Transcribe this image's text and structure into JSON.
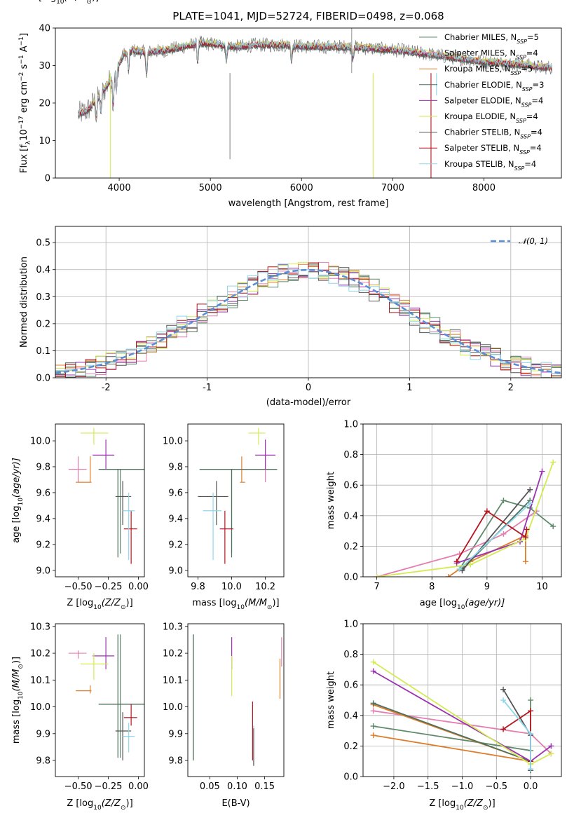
{
  "colors": {
    "Chabrier MILES": "#5f8a6b",
    "Salpeter MILES": "#e37fb0",
    "Kroupa MILES": "#dd7e2c",
    "Chabrier ELODIE": "#4d6f5c",
    "Salpeter ELODIE": "#9a33b0",
    "Kroupa ELODIE": "#d4ea52",
    "Chabrier STELIB": "#555555",
    "Salpeter STELIB": "#b4151e",
    "Kroupa STELIB": "#8fd7ea",
    "normal": "#5a8fd6"
  },
  "chart_data": [
    {
      "id": "spectrum",
      "type": "line",
      "title": "PLATE=1041, MJD=52724, FIBERID=0498, z=0.068",
      "xlabel": "wavelength [Angstrom, rest frame]",
      "ylabel": "Flux [f",
      "ylabel_sub": "λ",
      "ylabel_rest": "10",
      "ylabel_exp": "−17",
      "ylabel_units": " erg cm",
      "ylabel_exp2": "−2",
      "ylabel_s": " s",
      "ylabel_exp3": "−1",
      "ylabel_A": " A",
      "ylabel_exp4": "−1",
      "ylabel_end": "]",
      "xlim": [
        3300,
        8850
      ],
      "ylim": [
        0,
        40
      ],
      "xticks": [
        4000,
        5000,
        6000,
        7000,
        8000
      ],
      "yticks": [
        0,
        10,
        20,
        30,
        40
      ],
      "continuum": {
        "x": [
          3550,
          3650,
          3750,
          3850,
          3950,
          4050,
          4150,
          4300,
          4500,
          4700,
          4900,
          5100,
          5300,
          5500,
          5800,
          6100,
          6500,
          6800,
          7100,
          7400,
          7700,
          8000,
          8300,
          8500,
          8650,
          8750
        ],
        "y": [
          17,
          18,
          21,
          24,
          28,
          33,
          34,
          33.5,
          34,
          35,
          36,
          35.5,
          35,
          35.5,
          35.5,
          35,
          35,
          34.5,
          34,
          33,
          32,
          31,
          30.5,
          30,
          29.5,
          29.5
        ]
      },
      "series": [
        {
          "name": "Chabrier MILES",
          "nssp": "5"
        },
        {
          "name": "Salpeter MILES",
          "nssp": "4"
        },
        {
          "name": "Kroupa MILES",
          "nssp": "5"
        },
        {
          "name": "Chabrier ELODIE",
          "nssp": "3"
        },
        {
          "name": "Salpeter ELODIE",
          "nssp": "4"
        },
        {
          "name": "Kroupa ELODIE",
          "nssp": "4"
        },
        {
          "name": "Chabrier STELIB",
          "nssp": "4"
        },
        {
          "name": "Salpeter STELIB",
          "nssp": "4"
        },
        {
          "name": "Kroupa STELIB",
          "nssp": "4"
        }
      ],
      "legend_position": "upper-right"
    },
    {
      "id": "residuals",
      "type": "line",
      "xlabel": "(data-model)/error",
      "ylabel": "Normed distribution",
      "xlim": [
        -2.5,
        2.5
      ],
      "ylim": [
        0,
        0.56
      ],
      "xticks": [
        -2,
        -1,
        0,
        1,
        2
      ],
      "yticks": [
        0.0,
        0.1,
        0.2,
        0.3,
        0.4,
        0.5
      ],
      "grid": true,
      "legend": "𝒩(0, 1)",
      "legend_position": "upper-right"
    },
    {
      "id": "age-vs-Z",
      "type": "scatter",
      "xlabel": "Z [log",
      "xlabel_sub": "10",
      "xlabel_rest": "(Z/Z",
      "xlabel_sun": "⊙",
      "xlabel_end": ")]",
      "ylabel": "age  [log",
      "ylabel_sub": "10",
      "ylabel_rest": "(age/yr)]",
      "xlim": [
        -0.69,
        0.05
      ],
      "ylim": [
        8.95,
        10.13
      ],
      "xticks": [
        -0.5,
        -0.25,
        0.0
      ],
      "xticklabels": [
        "−0.50",
        "−0.25",
        "0.00"
      ],
      "yticks": [
        9.0,
        9.2,
        9.4,
        9.6,
        9.8,
        10.0
      ],
      "points": [
        {
          "s": "Chabrier MILES",
          "x": -0.15,
          "y": 9.78,
          "xl": -0.33,
          "xh": 0.05,
          "yl": 9.13,
          "yh": 9.78
        },
        {
          "s": "Salpeter MILES",
          "x": -0.5,
          "y": 9.78,
          "xl": -0.58,
          "xh": -0.43,
          "yl": 9.68,
          "yh": 9.88
        },
        {
          "s": "Kroupa MILES",
          "x": -0.4,
          "y": 9.68,
          "xl": -0.52,
          "xh": -0.39,
          "yl": 9.68,
          "yh": 9.88
        },
        {
          "s": "Chabrier ELODIE",
          "x": -0.17,
          "y": 9.78,
          "xl": -0.33,
          "xh": 0.05,
          "yl": 9.1,
          "yh": 9.78
        },
        {
          "s": "Salpeter ELODIE",
          "x": -0.27,
          "y": 9.89,
          "xl": -0.38,
          "xh": -0.2,
          "yl": 9.78,
          "yh": 10.01
        },
        {
          "s": "Kroupa ELODIE",
          "x": -0.37,
          "y": 10.06,
          "xl": -0.48,
          "xh": -0.25,
          "yl": 9.97,
          "yh": 10.1
        },
        {
          "s": "Chabrier STELIB",
          "x": -0.13,
          "y": 9.57,
          "xl": -0.19,
          "xh": -0.06,
          "yl": 9.35,
          "yh": 9.69
        },
        {
          "s": "Salpeter STELIB",
          "x": -0.06,
          "y": 9.32,
          "xl": -0.12,
          "xh": -0.01,
          "yl": 9.05,
          "yh": 9.46
        },
        {
          "s": "Kroupa STELIB",
          "x": -0.08,
          "y": 9.46,
          "xl": -0.13,
          "xh": -0.03,
          "yl": 9.08,
          "yh": 9.6
        }
      ]
    },
    {
      "id": "age-vs-mass",
      "type": "scatter",
      "xlabel": "mass [log",
      "xlabel_sub": "10",
      "xlabel_rest": "(M/M",
      "xlabel_sun": "⊙",
      "xlabel_end": ")]",
      "xlim": [
        9.74,
        10.31
      ],
      "ylim": [
        8.95,
        10.13
      ],
      "xticks": [
        9.8,
        10.0,
        10.2
      ],
      "xticklabels": [
        "9.8",
        "10.0",
        "10.2"
      ],
      "yticks": [
        9.0,
        9.2,
        9.4,
        9.6,
        9.8,
        10.0
      ],
      "points": [
        {
          "s": "Chabrier MILES",
          "x": 10.0,
          "y": 9.78,
          "xl": 9.81,
          "xh": 10.27,
          "yl": 9.13,
          "yh": 9.78
        },
        {
          "s": "Salpeter MILES",
          "x": 10.2,
          "y": 9.78,
          "xl": 10.18,
          "xh": 10.21,
          "yl": 9.68,
          "yh": 9.88
        },
        {
          "s": "Kroupa MILES",
          "x": 10.06,
          "y": 9.68,
          "xl": 10.05,
          "xh": 10.08,
          "yl": 9.68,
          "yh": 9.88
        },
        {
          "s": "Chabrier ELODIE",
          "x": 10.0,
          "y": 9.78,
          "xl": 9.81,
          "xh": 10.27,
          "yl": 9.1,
          "yh": 9.78
        },
        {
          "s": "Salpeter ELODIE",
          "x": 10.2,
          "y": 9.89,
          "xl": 10.14,
          "xh": 10.26,
          "yl": 9.78,
          "yh": 10.01
        },
        {
          "s": "Kroupa ELODIE",
          "x": 10.16,
          "y": 10.06,
          "xl": 10.1,
          "xh": 10.2,
          "yl": 9.97,
          "yh": 10.1
        },
        {
          "s": "Chabrier STELIB",
          "x": 9.91,
          "y": 9.57,
          "xl": 9.8,
          "xh": 9.98,
          "yl": 9.35,
          "yh": 9.69
        },
        {
          "s": "Salpeter STELIB",
          "x": 9.96,
          "y": 9.32,
          "xl": 9.93,
          "xh": 10.01,
          "yl": 9.05,
          "yh": 9.46
        },
        {
          "s": "Kroupa STELIB",
          "x": 9.89,
          "y": 9.46,
          "xl": 9.83,
          "xh": 9.94,
          "yl": 9.08,
          "yh": 9.6
        }
      ]
    },
    {
      "id": "weight-vs-age",
      "type": "line",
      "xlabel": "age  [log",
      "xlabel_sub": "10",
      "xlabel_rest": "(age/yr)]",
      "ylabel": "mass weight",
      "xlim": [
        6.75,
        10.35
      ],
      "ylim": [
        0,
        1
      ],
      "xticks": [
        7,
        8,
        9,
        10
      ],
      "xticklabels": [
        "7",
        "8",
        "9",
        "10"
      ],
      "yticks": [
        0.0,
        0.2,
        0.4,
        0.6,
        0.8,
        1.0
      ],
      "grid": true,
      "series": [
        {
          "s": "Chabrier MILES",
          "x": [
            8.5,
            9.3,
            9.78,
            10.2
          ],
          "y": [
            0.05,
            0.5,
            0.45,
            0.33
          ]
        },
        {
          "s": "Salpeter MILES",
          "x": [
            7.0,
            8.5,
            9.3,
            9.9
          ],
          "y": [
            0.0,
            0.15,
            0.28,
            0.43
          ]
        },
        {
          "s": "Kroupa MILES",
          "x": [
            8.3,
            8.7,
            9.7,
            9.7
          ],
          "y": [
            0.0,
            0.1,
            0.27,
            0.1
          ]
        },
        {
          "s": "Chabrier ELODIE",
          "x": [
            8.55,
            9.78
          ],
          "y": [
            0.05,
            0.5
          ]
        },
        {
          "s": "Salpeter ELODIE",
          "x": [
            8.45,
            9.6,
            10.0
          ],
          "y": [
            0.09,
            0.23,
            0.69
          ]
        },
        {
          "s": "Kroupa ELODIE",
          "x": [
            7.0,
            8.7,
            9.7,
            10.2
          ],
          "y": [
            0.0,
            0.08,
            0.25,
            0.75
          ]
        },
        {
          "s": "Chabrier STELIB",
          "x": [
            8.55,
            9.78
          ],
          "y": [
            0.04,
            0.57
          ]
        },
        {
          "s": "Salpeter STELIB",
          "x": [
            8.45,
            9.0,
            9.7,
            9.72
          ],
          "y": [
            0.1,
            0.43,
            0.26,
            0.31
          ]
        },
        {
          "s": "Kroupa STELIB",
          "x": [
            8.5,
            9.78
          ],
          "y": [
            0.05,
            0.48
          ]
        }
      ]
    },
    {
      "id": "mass-vs-Z",
      "type": "scatter",
      "xlabel": "Z [log",
      "xlabel_sub": "10",
      "xlabel_rest": "(Z/Z",
      "xlabel_sun": "⊙",
      "xlabel_end": ")]",
      "ylabel": "mass [log",
      "ylabel_sub": "10",
      "ylabel_rest": "(M/M",
      "ylabel_sun": "⊙",
      "ylabel_end": ")]",
      "xlim": [
        -0.69,
        0.05
      ],
      "ylim": [
        9.74,
        10.31
      ],
      "xticks": [
        -0.5,
        -0.25,
        0.0
      ],
      "xticklabels": [
        "−0.50",
        "−0.25",
        "0.00"
      ],
      "yticks": [
        9.8,
        9.9,
        10.0,
        10.1,
        10.2,
        10.3
      ],
      "points": [
        {
          "s": "Chabrier MILES",
          "x": -0.15,
          "y": 10.01,
          "xl": -0.33,
          "xh": 0.05,
          "yl": 9.81,
          "yh": 10.27
        },
        {
          "s": "Salpeter MILES",
          "x": -0.5,
          "y": 10.2,
          "xl": -0.58,
          "xh": -0.43,
          "yl": 10.18,
          "yh": 10.21
        },
        {
          "s": "Kroupa MILES",
          "x": -0.4,
          "y": 10.06,
          "xl": -0.52,
          "xh": -0.39,
          "yl": 10.05,
          "yh": 10.08
        },
        {
          "s": "Chabrier ELODIE",
          "x": -0.17,
          "y": 10.01,
          "xl": -0.33,
          "xh": 0.05,
          "yl": 9.81,
          "yh": 10.27
        },
        {
          "s": "Salpeter ELODIE",
          "x": -0.27,
          "y": 10.19,
          "xl": -0.38,
          "xh": -0.2,
          "yl": 10.14,
          "yh": 10.26
        },
        {
          "s": "Kroupa ELODIE",
          "x": -0.37,
          "y": 10.16,
          "xl": -0.48,
          "xh": -0.25,
          "yl": 10.1,
          "yh": 10.2
        },
        {
          "s": "Chabrier STELIB",
          "x": -0.13,
          "y": 9.91,
          "xl": -0.19,
          "xh": -0.06,
          "yl": 9.8,
          "yh": 9.98
        },
        {
          "s": "Salpeter STELIB",
          "x": -0.06,
          "y": 9.96,
          "xl": -0.12,
          "xh": -0.01,
          "yl": 9.93,
          "yh": 10.01
        },
        {
          "s": "Kroupa STELIB",
          "x": -0.08,
          "y": 9.89,
          "xl": -0.13,
          "xh": -0.03,
          "yl": 9.83,
          "yh": 9.94
        }
      ]
    },
    {
      "id": "mass-vs-ebv",
      "type": "scatter",
      "xlabel": "E(B-V)",
      "xlim": [
        0.01,
        0.185
      ],
      "ylim": [
        9.74,
        10.31
      ],
      "xticks": [
        0.05,
        0.1,
        0.15
      ],
      "xticklabels": [
        "0.05",
        "0.10",
        "0.15"
      ],
      "yticks": [
        9.8,
        9.9,
        10.0,
        10.1,
        10.2,
        10.3
      ],
      "points": [
        {
          "s": "Chabrier MILES",
          "x": 0.02,
          "y": 10.01,
          "yl": 9.8,
          "yh": 10.27
        },
        {
          "s": "Chabrier ELODIE",
          "x": 0.02,
          "y": 10.0,
          "yl": 9.8,
          "yh": 10.27
        },
        {
          "s": "Salpeter ELODIE",
          "x": 0.09,
          "y": 10.19,
          "yl": 10.14,
          "yh": 10.26
        },
        {
          "s": "Kroupa ELODIE",
          "x": 0.09,
          "y": 10.12,
          "yl": 10.04,
          "yh": 10.19
        },
        {
          "s": "Salpeter STELIB",
          "x": 0.128,
          "y": 9.96,
          "yl": 9.8,
          "yh": 10.02
        },
        {
          "s": "Kroupa STELIB",
          "x": 0.13,
          "y": 9.88,
          "yl": 9.78,
          "yh": 9.93
        },
        {
          "s": "Chabrier STELIB",
          "x": 0.13,
          "y": 9.85,
          "yl": 9.78,
          "yh": 9.92
        },
        {
          "s": "Kroupa MILES",
          "x": 0.178,
          "y": 10.1,
          "yl": 10.03,
          "yh": 10.18
        },
        {
          "s": "Salpeter MILES",
          "x": 0.181,
          "y": 10.2,
          "yl": 10.15,
          "yh": 10.26
        }
      ]
    },
    {
      "id": "weight-vs-Z",
      "type": "line",
      "xlabel": "Z [log",
      "xlabel_sub": "10",
      "xlabel_rest": "(Z/Z",
      "xlabel_sun": "⊙",
      "xlabel_end": ")]",
      "ylabel": "mass weight",
      "xlim": [
        -2.45,
        0.45
      ],
      "ylim": [
        0,
        1
      ],
      "xticks": [
        -2.0,
        -1.5,
        -1.0,
        -0.5,
        0.0
      ],
      "xticklabels": [
        "−2.0",
        "−1.5",
        "−1.0",
        "−0.5",
        "0.0"
      ],
      "yticks": [
        0.0,
        0.2,
        0.4,
        0.6,
        0.8,
        1.0
      ],
      "grid": true,
      "series": [
        {
          "s": "Chabrier MILES",
          "x": [
            -2.3,
            0.0,
            0.0
          ],
          "y": [
            0.33,
            0.17,
            0.5
          ]
        },
        {
          "s": "Salpeter MILES",
          "x": [
            -2.3,
            0.0,
            0.3
          ],
          "y": [
            0.43,
            0.28,
            0.15
          ]
        },
        {
          "s": "Kroupa MILES",
          "x": [
            -2.3,
            0.0,
            -2.3
          ],
          "y": [
            0.27,
            0.1,
            0.47
          ]
        },
        {
          "s": "Chabrier ELODIE",
          "x": [
            -2.3,
            0.0
          ],
          "y": [
            0.48,
            0.1
          ]
        },
        {
          "s": "Salpeter ELODIE",
          "x": [
            -2.3,
            0.0,
            0.3
          ],
          "y": [
            0.69,
            0.1,
            0.2
          ]
        },
        {
          "s": "Kroupa ELODIE",
          "x": [
            -2.3,
            0.0,
            0.3
          ],
          "y": [
            0.75,
            0.08,
            0.15
          ]
        },
        {
          "s": "Chabrier STELIB",
          "x": [
            -0.4,
            0.0,
            0.0
          ],
          "y": [
            0.57,
            0.27,
            0.04
          ]
        },
        {
          "s": "Salpeter STELIB",
          "x": [
            -0.4,
            0.0,
            0.0
          ],
          "y": [
            0.31,
            0.43,
            0.1
          ]
        },
        {
          "s": "Kroupa STELIB",
          "x": [
            -0.4,
            0.0,
            0.0
          ],
          "y": [
            0.5,
            0.28,
            0.05
          ]
        }
      ]
    }
  ]
}
